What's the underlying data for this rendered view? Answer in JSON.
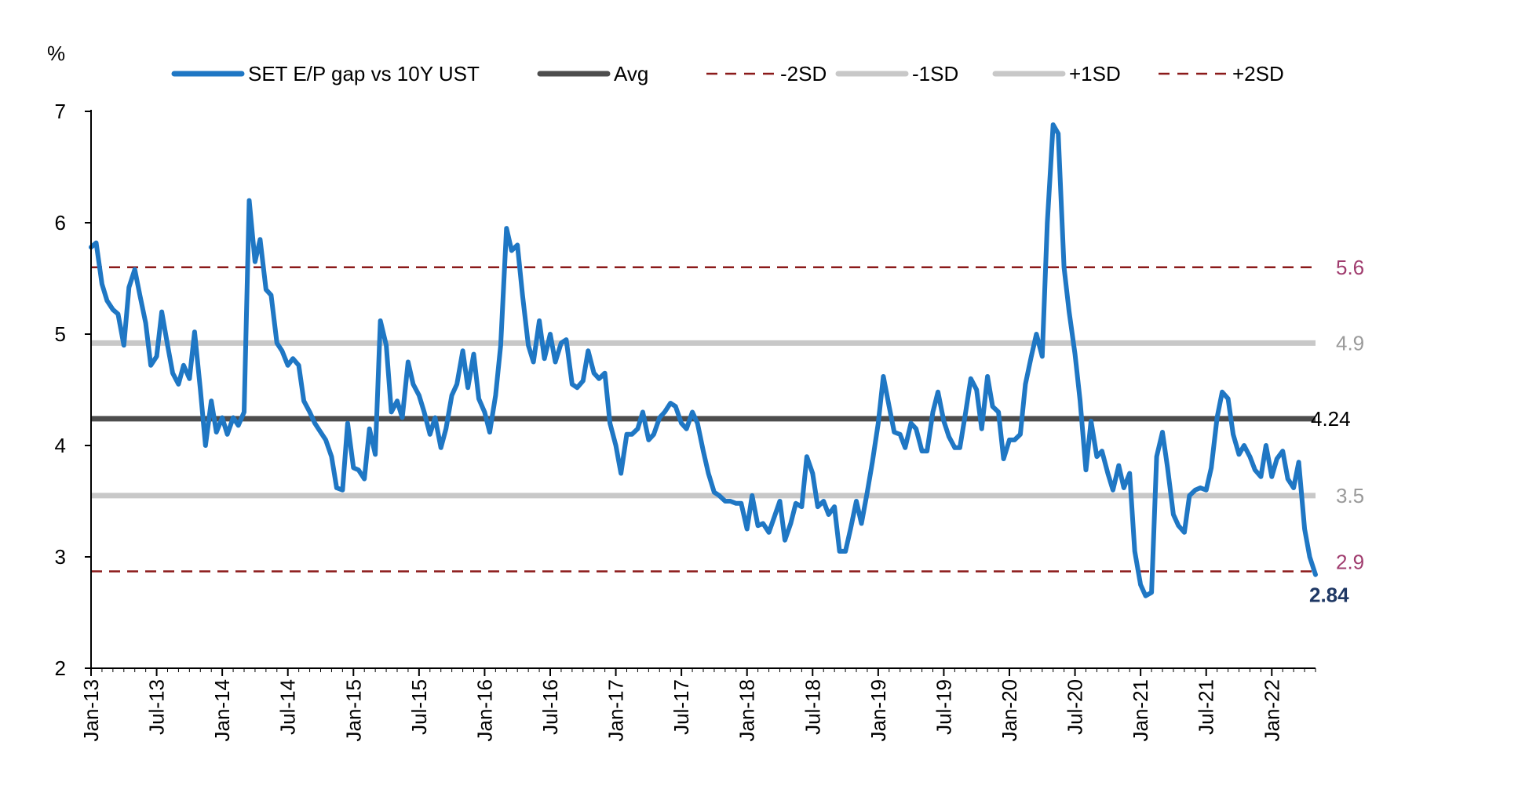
{
  "chart_data": {
    "type": "line",
    "y_unit": "%",
    "ylim": [
      2,
      7
    ],
    "yticks": [
      "2",
      "3",
      "4",
      "5",
      "6",
      "7"
    ],
    "x_ticks": [
      "Jan-13",
      "Jul-13",
      "Jan-14",
      "Jul-14",
      "Jan-15",
      "Jul-15",
      "Jan-16",
      "Jul-16",
      "Jan-17",
      "Jul-17",
      "Jan-18",
      "Jul-18",
      "Jan-19",
      "Jul-19",
      "Jan-20",
      "Jul-20",
      "Jan-21",
      "Jul-21",
      "Jan-22"
    ],
    "x_range": [
      "2013-01",
      "2022-05"
    ],
    "legend": {
      "position": "top",
      "entries": [
        {
          "label": "SET E/P gap vs 10Y UST",
          "color": "#1f77c4",
          "style": "solid-thick"
        },
        {
          "label": "Avg",
          "color": "#4d4d4d",
          "style": "solid-thick"
        },
        {
          "label": "-2SD",
          "color": "#8b1a1a",
          "style": "dashed"
        },
        {
          "label": "-1SD",
          "color": "#c8c8c8",
          "style": "solid-thick"
        },
        {
          "label": "+1SD",
          "color": "#c8c8c8",
          "style": "solid-thick"
        },
        {
          "label": "+2SD",
          "color": "#8b1a1a",
          "style": "dashed"
        }
      ]
    },
    "reference_lines": [
      {
        "name": "+2SD",
        "value": 5.6,
        "label": "5.6",
        "color": "#8b1a1a",
        "label_color": "#a03c6e",
        "dashed": true
      },
      {
        "name": "+1SD",
        "value": 4.92,
        "label": "4.9",
        "color": "#c8c8c8",
        "label_color": "#9a9a9a",
        "dashed": false
      },
      {
        "name": "Avg",
        "value": 4.24,
        "label": "4.24",
        "color": "#4d4d4d",
        "label_color": "#000000",
        "dashed": false
      },
      {
        "name": "-1SD",
        "value": 3.55,
        "label": "3.5",
        "color": "#c8c8c8",
        "label_color": "#9a9a9a",
        "dashed": false
      },
      {
        "name": "-2SD",
        "value": 2.87,
        "label": "2.9",
        "color": "#8b1a1a",
        "label_color": "#a03c6e",
        "dashed": true
      }
    ],
    "last_value": {
      "value": 2.84,
      "label": "2.84",
      "color": "#1f3864"
    },
    "series": [
      {
        "name": "SET E/P gap vs 10Y UST",
        "color": "#1f77c4",
        "points": [
          [
            "2013-01-01",
            5.78
          ],
          [
            "2013-01-15",
            5.82
          ],
          [
            "2013-02-01",
            5.45
          ],
          [
            "2013-02-15",
            5.3
          ],
          [
            "2013-03-01",
            5.22
          ],
          [
            "2013-03-15",
            5.18
          ],
          [
            "2013-04-01",
            4.9
          ],
          [
            "2013-04-15",
            5.42
          ],
          [
            "2013-05-01",
            5.58
          ],
          [
            "2013-05-15",
            5.35
          ],
          [
            "2013-06-01",
            5.1
          ],
          [
            "2013-06-15",
            4.72
          ],
          [
            "2013-07-01",
            4.8
          ],
          [
            "2013-07-15",
            5.2
          ],
          [
            "2013-08-01",
            4.9
          ],
          [
            "2013-08-15",
            4.65
          ],
          [
            "2013-09-01",
            4.55
          ],
          [
            "2013-09-15",
            4.72
          ],
          [
            "2013-10-01",
            4.6
          ],
          [
            "2013-10-15",
            5.02
          ],
          [
            "2013-11-01",
            4.5
          ],
          [
            "2013-11-15",
            4.0
          ],
          [
            "2013-12-01",
            4.4
          ],
          [
            "2013-12-15",
            4.12
          ],
          [
            "2014-01-01",
            4.25
          ],
          [
            "2014-01-15",
            4.1
          ],
          [
            "2014-02-01",
            4.25
          ],
          [
            "2014-02-15",
            4.18
          ],
          [
            "2014-03-01",
            4.3
          ],
          [
            "2014-03-15",
            6.2
          ],
          [
            "2014-04-01",
            5.65
          ],
          [
            "2014-04-15",
            5.85
          ],
          [
            "2014-05-01",
            5.4
          ],
          [
            "2014-05-15",
            5.35
          ],
          [
            "2014-06-01",
            4.92
          ],
          [
            "2014-06-15",
            4.85
          ],
          [
            "2014-07-01",
            4.72
          ],
          [
            "2014-07-15",
            4.78
          ],
          [
            "2014-08-01",
            4.72
          ],
          [
            "2014-08-15",
            4.4
          ],
          [
            "2014-09-01",
            4.3
          ],
          [
            "2014-09-15",
            4.2
          ],
          [
            "2014-10-01",
            4.12
          ],
          [
            "2014-10-15",
            4.05
          ],
          [
            "2014-11-01",
            3.9
          ],
          [
            "2014-11-15",
            3.62
          ],
          [
            "2014-12-01",
            3.6
          ],
          [
            "2014-12-15",
            4.2
          ],
          [
            "2015-01-01",
            3.8
          ],
          [
            "2015-01-15",
            3.78
          ],
          [
            "2015-02-01",
            3.7
          ],
          [
            "2015-02-15",
            4.15
          ],
          [
            "2015-03-01",
            3.92
          ],
          [
            "2015-03-15",
            5.12
          ],
          [
            "2015-04-01",
            4.9
          ],
          [
            "2015-04-15",
            4.3
          ],
          [
            "2015-05-01",
            4.4
          ],
          [
            "2015-05-15",
            4.25
          ],
          [
            "2015-06-01",
            4.75
          ],
          [
            "2015-06-15",
            4.55
          ],
          [
            "2015-07-01",
            4.45
          ],
          [
            "2015-07-15",
            4.3
          ],
          [
            "2015-08-01",
            4.1
          ],
          [
            "2015-08-15",
            4.25
          ],
          [
            "2015-09-01",
            3.98
          ],
          [
            "2015-09-15",
            4.15
          ],
          [
            "2015-10-01",
            4.45
          ],
          [
            "2015-10-15",
            4.55
          ],
          [
            "2015-11-01",
            4.85
          ],
          [
            "2015-11-15",
            4.52
          ],
          [
            "2015-12-01",
            4.82
          ],
          [
            "2015-12-15",
            4.42
          ],
          [
            "2016-01-01",
            4.3
          ],
          [
            "2016-01-15",
            4.12
          ],
          [
            "2016-02-01",
            4.45
          ],
          [
            "2016-02-15",
            4.9
          ],
          [
            "2016-03-01",
            5.95
          ],
          [
            "2016-03-15",
            5.75
          ],
          [
            "2016-04-01",
            5.8
          ],
          [
            "2016-04-15",
            5.35
          ],
          [
            "2016-05-01",
            4.9
          ],
          [
            "2016-05-15",
            4.75
          ],
          [
            "2016-06-01",
            5.12
          ],
          [
            "2016-06-15",
            4.78
          ],
          [
            "2016-07-01",
            5.0
          ],
          [
            "2016-07-15",
            4.75
          ],
          [
            "2016-08-01",
            4.92
          ],
          [
            "2016-08-15",
            4.95
          ],
          [
            "2016-09-01",
            4.55
          ],
          [
            "2016-09-15",
            4.52
          ],
          [
            "2016-10-01",
            4.58
          ],
          [
            "2016-10-15",
            4.85
          ],
          [
            "2016-11-01",
            4.65
          ],
          [
            "2016-11-15",
            4.6
          ],
          [
            "2016-12-01",
            4.65
          ],
          [
            "2016-12-15",
            4.2
          ],
          [
            "2017-01-01",
            4.0
          ],
          [
            "2017-01-15",
            3.75
          ],
          [
            "2017-02-01",
            4.1
          ],
          [
            "2017-02-15",
            4.1
          ],
          [
            "2017-03-01",
            4.15
          ],
          [
            "2017-03-15",
            4.3
          ],
          [
            "2017-04-01",
            4.05
          ],
          [
            "2017-04-15",
            4.1
          ],
          [
            "2017-05-01",
            4.25
          ],
          [
            "2017-05-15",
            4.3
          ],
          [
            "2017-06-01",
            4.38
          ],
          [
            "2017-06-15",
            4.35
          ],
          [
            "2017-07-01",
            4.2
          ],
          [
            "2017-07-15",
            4.15
          ],
          [
            "2017-08-01",
            4.3
          ],
          [
            "2017-08-15",
            4.2
          ],
          [
            "2017-09-01",
            3.95
          ],
          [
            "2017-09-15",
            3.75
          ],
          [
            "2017-10-01",
            3.58
          ],
          [
            "2017-10-15",
            3.55
          ],
          [
            "2017-11-01",
            3.5
          ],
          [
            "2017-11-15",
            3.5
          ],
          [
            "2017-12-01",
            3.48
          ],
          [
            "2017-12-15",
            3.48
          ],
          [
            "2018-01-01",
            3.25
          ],
          [
            "2018-01-15",
            3.55
          ],
          [
            "2018-02-01",
            3.28
          ],
          [
            "2018-02-15",
            3.3
          ],
          [
            "2018-03-01",
            3.22
          ],
          [
            "2018-03-15",
            3.35
          ],
          [
            "2018-04-01",
            3.5
          ],
          [
            "2018-04-15",
            3.15
          ],
          [
            "2018-05-01",
            3.3
          ],
          [
            "2018-05-15",
            3.48
          ],
          [
            "2018-06-01",
            3.45
          ],
          [
            "2018-06-15",
            3.9
          ],
          [
            "2018-07-01",
            3.75
          ],
          [
            "2018-07-15",
            3.45
          ],
          [
            "2018-08-01",
            3.5
          ],
          [
            "2018-08-15",
            3.38
          ],
          [
            "2018-09-01",
            3.45
          ],
          [
            "2018-09-15",
            3.05
          ],
          [
            "2018-10-01",
            3.05
          ],
          [
            "2018-10-15",
            3.25
          ],
          [
            "2018-11-01",
            3.5
          ],
          [
            "2018-11-15",
            3.3
          ],
          [
            "2018-12-01",
            3.58
          ],
          [
            "2018-12-15",
            3.85
          ],
          [
            "2019-01-01",
            4.2
          ],
          [
            "2019-01-15",
            4.62
          ],
          [
            "2019-02-01",
            4.35
          ],
          [
            "2019-02-15",
            4.12
          ],
          [
            "2019-03-01",
            4.1
          ],
          [
            "2019-03-15",
            3.98
          ],
          [
            "2019-04-01",
            4.2
          ],
          [
            "2019-04-15",
            4.15
          ],
          [
            "2019-05-01",
            3.95
          ],
          [
            "2019-05-15",
            3.95
          ],
          [
            "2019-06-01",
            4.3
          ],
          [
            "2019-06-15",
            4.48
          ],
          [
            "2019-07-01",
            4.22
          ],
          [
            "2019-07-15",
            4.08
          ],
          [
            "2019-08-01",
            3.98
          ],
          [
            "2019-08-15",
            3.98
          ],
          [
            "2019-09-01",
            4.3
          ],
          [
            "2019-09-15",
            4.6
          ],
          [
            "2019-10-01",
            4.5
          ],
          [
            "2019-10-15",
            4.15
          ],
          [
            "2019-11-01",
            4.62
          ],
          [
            "2019-11-15",
            4.35
          ],
          [
            "2019-12-01",
            4.3
          ],
          [
            "2019-12-15",
            3.88
          ],
          [
            "2020-01-01",
            4.05
          ],
          [
            "2020-01-15",
            4.05
          ],
          [
            "2020-02-01",
            4.1
          ],
          [
            "2020-02-15",
            4.55
          ],
          [
            "2020-03-01",
            4.8
          ],
          [
            "2020-03-15",
            5.0
          ],
          [
            "2020-04-01",
            4.8
          ],
          [
            "2020-04-15",
            6.0
          ],
          [
            "2020-05-01",
            6.88
          ],
          [
            "2020-05-15",
            6.8
          ],
          [
            "2020-06-01",
            5.6
          ],
          [
            "2020-06-15",
            5.2
          ],
          [
            "2020-07-01",
            4.82
          ],
          [
            "2020-07-15",
            4.4
          ],
          [
            "2020-08-01",
            3.78
          ],
          [
            "2020-08-15",
            4.22
          ],
          [
            "2020-09-01",
            3.9
          ],
          [
            "2020-09-15",
            3.95
          ],
          [
            "2020-10-01",
            3.75
          ],
          [
            "2020-10-15",
            3.6
          ],
          [
            "2020-11-01",
            3.82
          ],
          [
            "2020-11-15",
            3.62
          ],
          [
            "2020-12-01",
            3.75
          ],
          [
            "2020-12-15",
            3.05
          ],
          [
            "2021-01-01",
            2.75
          ],
          [
            "2021-01-15",
            2.65
          ],
          [
            "2021-02-01",
            2.68
          ],
          [
            "2021-02-15",
            3.9
          ],
          [
            "2021-03-01",
            4.12
          ],
          [
            "2021-03-15",
            3.8
          ],
          [
            "2021-04-01",
            3.38
          ],
          [
            "2021-04-15",
            3.28
          ],
          [
            "2021-05-01",
            3.22
          ],
          [
            "2021-05-15",
            3.55
          ],
          [
            "2021-06-01",
            3.6
          ],
          [
            "2021-06-15",
            3.62
          ],
          [
            "2021-07-01",
            3.6
          ],
          [
            "2021-07-15",
            3.8
          ],
          [
            "2021-08-01",
            4.25
          ],
          [
            "2021-08-15",
            4.48
          ],
          [
            "2021-09-01",
            4.42
          ],
          [
            "2021-09-15",
            4.1
          ],
          [
            "2021-10-01",
            3.92
          ],
          [
            "2021-10-15",
            4.0
          ],
          [
            "2021-11-01",
            3.9
          ],
          [
            "2021-11-15",
            3.78
          ],
          [
            "2021-12-01",
            3.72
          ],
          [
            "2021-12-15",
            4.0
          ],
          [
            "2022-01-01",
            3.72
          ],
          [
            "2022-01-15",
            3.88
          ],
          [
            "2022-02-01",
            3.95
          ],
          [
            "2022-02-15",
            3.7
          ],
          [
            "2022-03-01",
            3.62
          ],
          [
            "2022-03-15",
            3.85
          ],
          [
            "2022-04-01",
            3.25
          ],
          [
            "2022-04-15",
            3.0
          ],
          [
            "2022-05-01",
            2.84
          ]
        ]
      }
    ]
  }
}
